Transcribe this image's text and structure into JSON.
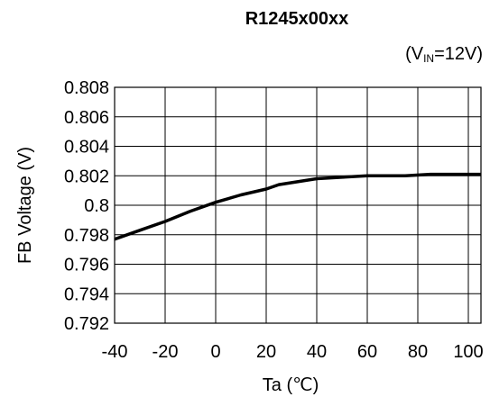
{
  "chart_data": {
    "type": "line",
    "title": "R1245x00xx",
    "condition": {
      "prefix": "(V",
      "subscript": "IN",
      "suffix": "=12V)"
    },
    "xlabel": "Ta (℃)",
    "ylabel": "FB Voltage  (V)",
    "xlim": [
      -40,
      105
    ],
    "ylim": [
      0.792,
      0.808
    ],
    "x_ticks": [
      -40,
      -20,
      0,
      20,
      40,
      60,
      80,
      100
    ],
    "x_tick_labels": [
      "-40",
      "-20",
      "0",
      "20",
      "40",
      "60",
      "80",
      "100"
    ],
    "y_ticks": [
      0.792,
      0.794,
      0.796,
      0.798,
      0.8,
      0.802,
      0.804,
      0.806,
      0.808
    ],
    "y_tick_labels": [
      "0.792",
      "0.794",
      "0.796",
      "0.798",
      "0.8",
      "0.802",
      "0.804",
      "0.806",
      "0.808"
    ],
    "x_gridlines": [
      -40,
      -20,
      0,
      20,
      40,
      60,
      80,
      100
    ],
    "grid": true,
    "legend": "none",
    "line_color": "#000000",
    "series": [
      {
        "x": [
          -40,
          -30,
          -20,
          -10,
          0,
          10,
          20,
          25,
          40,
          50,
          60,
          70,
          75,
          85,
          95,
          105
        ],
        "values": [
          0.7977,
          0.7983,
          0.7989,
          0.7996,
          0.8002,
          0.8007,
          0.8011,
          0.8014,
          0.8018,
          0.8019,
          0.802,
          0.802,
          0.802,
          0.8021,
          0.8021,
          0.8021
        ]
      }
    ]
  }
}
